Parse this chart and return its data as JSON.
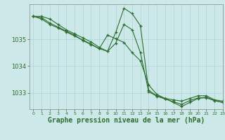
{
  "background_color": "#cce8e8",
  "grid_color": "#aad4d4",
  "line_color": "#2d6e2d",
  "xlabel": "Graphe pression niveau de la mer (hPa)",
  "xlabel_fontsize": 7,
  "tick_label_color": "#2d6e2d",
  "ylim": [
    1032.4,
    1036.3
  ],
  "xlim": [
    -0.5,
    23
  ],
  "yticks": [
    1033,
    1034,
    1035
  ],
  "xticks": [
    0,
    1,
    2,
    3,
    4,
    5,
    6,
    7,
    8,
    9,
    10,
    11,
    12,
    13,
    14,
    15,
    16,
    17,
    18,
    19,
    20,
    21,
    22,
    23
  ],
  "series": [
    {
      "x": [
        0,
        1,
        2,
        3,
        4,
        5,
        6,
        7,
        8,
        9,
        10,
        11,
        12,
        13,
        14,
        15,
        16,
        17,
        18,
        19,
        20,
        21,
        22,
        23
      ],
      "y": [
        1035.85,
        1035.85,
        1035.75,
        1035.55,
        1035.35,
        1035.2,
        1035.05,
        1034.9,
        1034.7,
        1034.55,
        1035.25,
        1036.15,
        1035.95,
        1035.5,
        1033.1,
        1032.9,
        1032.8,
        1032.75,
        1032.7,
        1032.8,
        1032.9,
        1032.9,
        1032.75,
        1032.7
      ]
    },
    {
      "x": [
        0,
        1,
        2,
        3,
        4,
        5,
        6,
        7,
        8,
        9,
        10,
        11,
        12,
        13,
        14,
        15,
        16,
        17,
        18,
        19,
        20,
        21,
        22,
        23
      ],
      "y": [
        1035.85,
        1035.8,
        1035.6,
        1035.45,
        1035.3,
        1035.15,
        1034.95,
        1034.8,
        1034.65,
        1034.55,
        1034.85,
        1035.55,
        1035.35,
        1034.5,
        1033.05,
        1032.88,
        1032.78,
        1032.68,
        1032.58,
        1032.72,
        1032.82,
        1032.82,
        1032.72,
        1032.65
      ]
    },
    {
      "x": [
        0,
        1,
        2,
        3,
        4,
        5,
        6,
        7,
        8,
        9,
        10,
        11,
        12,
        13,
        14,
        15,
        16,
        17,
        18,
        19,
        20,
        21,
        22,
        23
      ],
      "y": [
        1035.85,
        1035.75,
        1035.55,
        1035.42,
        1035.27,
        1035.12,
        1034.97,
        1034.82,
        1034.65,
        1035.15,
        1035.02,
        1034.88,
        1034.5,
        1034.2,
        1033.3,
        1032.95,
        1032.8,
        1032.65,
        1032.5,
        1032.65,
        1032.8,
        1032.85,
        1032.72,
        1032.65
      ]
    }
  ]
}
